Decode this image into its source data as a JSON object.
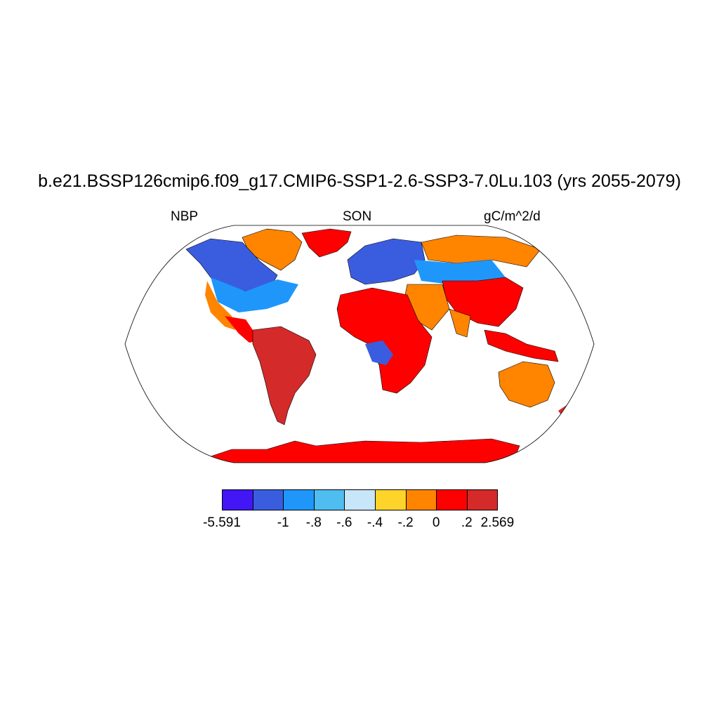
{
  "title": "b.e21.BSSP126cmip6.f09_g17.CMIP6-SSP1-2.6-SSP3-7.0Lu.103 (yrs 2055-2079)",
  "subtitle_left": "NBP",
  "subtitle_center": "SON",
  "subtitle_right": "gC/m^2/d",
  "colorbar": {
    "colors": [
      "#4216f5",
      "#3a5de0",
      "#1f97fa",
      "#4fbdf0",
      "#c8e6fa",
      "#ffd42a",
      "#ff8400",
      "#ff0000",
      "#d42a2a"
    ],
    "labels": [
      "-5.591",
      "-1",
      "-.8",
      "-.6",
      "-.4",
      "-.2",
      "0",
      ".2",
      "2.569"
    ],
    "label_boundary_index": [
      0,
      2,
      3,
      4,
      5,
      6,
      7,
      8,
      9
    ]
  },
  "map": {
    "projection": "Robinson",
    "ocean_color": "#ffffff",
    "outline_color": "#000000"
  }
}
